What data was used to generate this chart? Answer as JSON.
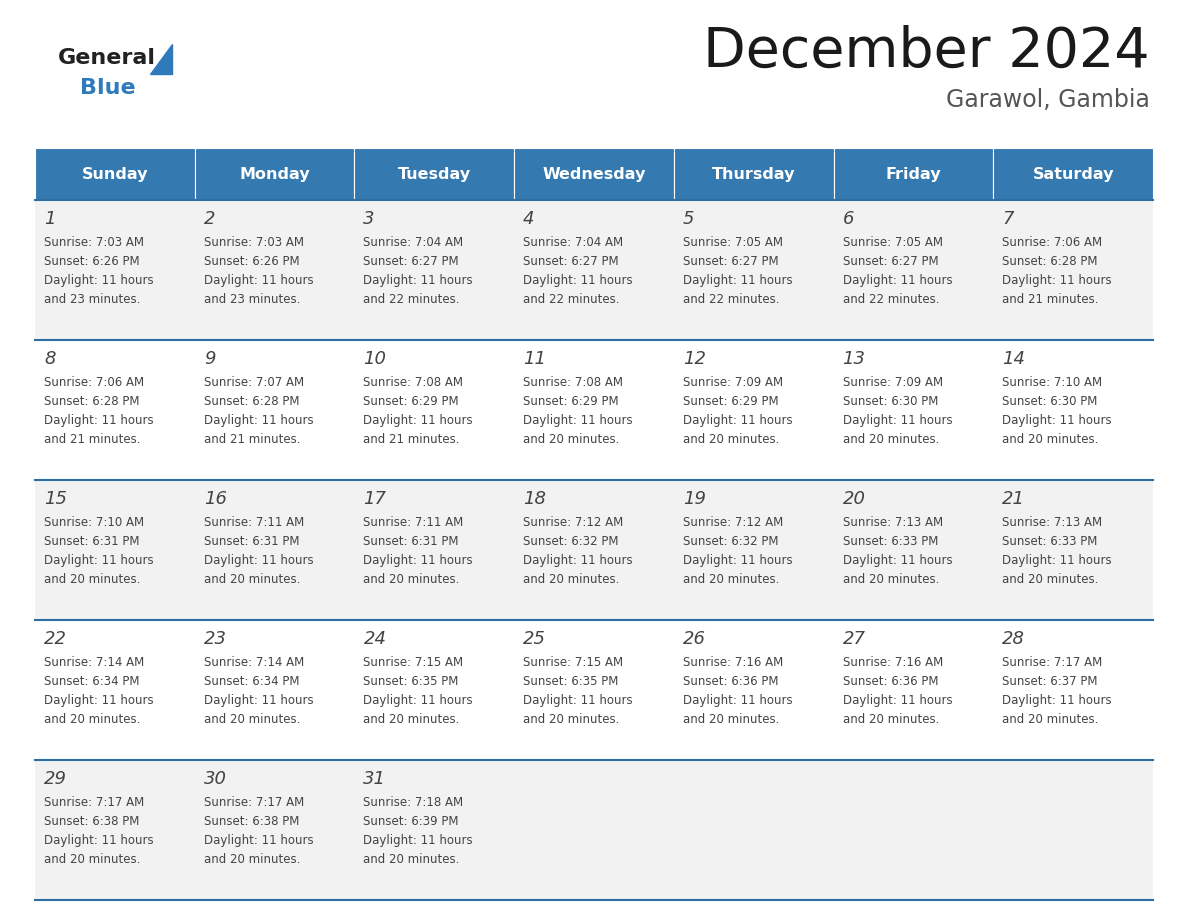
{
  "title": "December 2024",
  "subtitle": "Garawol, Gambia",
  "header_color": "#3579b1",
  "header_text_color": "#ffffff",
  "days_of_week": [
    "Sunday",
    "Monday",
    "Tuesday",
    "Wednesday",
    "Thursday",
    "Friday",
    "Saturday"
  ],
  "background_color": "#ffffff",
  "cell_bg_even": "#f2f2f2",
  "cell_bg_odd": "#ffffff",
  "border_color": "#2e6da4",
  "text_color": "#444444",
  "logo_general_color": "#222222",
  "logo_blue_color": "#2e7aba",
  "logo_triangle_color": "#2e7aba",
  "calendar_data": [
    [
      {
        "day": 1,
        "sunrise": "7:03 AM",
        "sunset": "6:26 PM",
        "daylight_hours": 11,
        "daylight_minutes": 23
      },
      {
        "day": 2,
        "sunrise": "7:03 AM",
        "sunset": "6:26 PM",
        "daylight_hours": 11,
        "daylight_minutes": 23
      },
      {
        "day": 3,
        "sunrise": "7:04 AM",
        "sunset": "6:27 PM",
        "daylight_hours": 11,
        "daylight_minutes": 22
      },
      {
        "day": 4,
        "sunrise": "7:04 AM",
        "sunset": "6:27 PM",
        "daylight_hours": 11,
        "daylight_minutes": 22
      },
      {
        "day": 5,
        "sunrise": "7:05 AM",
        "sunset": "6:27 PM",
        "daylight_hours": 11,
        "daylight_minutes": 22
      },
      {
        "day": 6,
        "sunrise": "7:05 AM",
        "sunset": "6:27 PM",
        "daylight_hours": 11,
        "daylight_minutes": 22
      },
      {
        "day": 7,
        "sunrise": "7:06 AM",
        "sunset": "6:28 PM",
        "daylight_hours": 11,
        "daylight_minutes": 21
      }
    ],
    [
      {
        "day": 8,
        "sunrise": "7:06 AM",
        "sunset": "6:28 PM",
        "daylight_hours": 11,
        "daylight_minutes": 21
      },
      {
        "day": 9,
        "sunrise": "7:07 AM",
        "sunset": "6:28 PM",
        "daylight_hours": 11,
        "daylight_minutes": 21
      },
      {
        "day": 10,
        "sunrise": "7:08 AM",
        "sunset": "6:29 PM",
        "daylight_hours": 11,
        "daylight_minutes": 21
      },
      {
        "day": 11,
        "sunrise": "7:08 AM",
        "sunset": "6:29 PM",
        "daylight_hours": 11,
        "daylight_minutes": 20
      },
      {
        "day": 12,
        "sunrise": "7:09 AM",
        "sunset": "6:29 PM",
        "daylight_hours": 11,
        "daylight_minutes": 20
      },
      {
        "day": 13,
        "sunrise": "7:09 AM",
        "sunset": "6:30 PM",
        "daylight_hours": 11,
        "daylight_minutes": 20
      },
      {
        "day": 14,
        "sunrise": "7:10 AM",
        "sunset": "6:30 PM",
        "daylight_hours": 11,
        "daylight_minutes": 20
      }
    ],
    [
      {
        "day": 15,
        "sunrise": "7:10 AM",
        "sunset": "6:31 PM",
        "daylight_hours": 11,
        "daylight_minutes": 20
      },
      {
        "day": 16,
        "sunrise": "7:11 AM",
        "sunset": "6:31 PM",
        "daylight_hours": 11,
        "daylight_minutes": 20
      },
      {
        "day": 17,
        "sunrise": "7:11 AM",
        "sunset": "6:31 PM",
        "daylight_hours": 11,
        "daylight_minutes": 20
      },
      {
        "day": 18,
        "sunrise": "7:12 AM",
        "sunset": "6:32 PM",
        "daylight_hours": 11,
        "daylight_minutes": 20
      },
      {
        "day": 19,
        "sunrise": "7:12 AM",
        "sunset": "6:32 PM",
        "daylight_hours": 11,
        "daylight_minutes": 20
      },
      {
        "day": 20,
        "sunrise": "7:13 AM",
        "sunset": "6:33 PM",
        "daylight_hours": 11,
        "daylight_minutes": 20
      },
      {
        "day": 21,
        "sunrise": "7:13 AM",
        "sunset": "6:33 PM",
        "daylight_hours": 11,
        "daylight_minutes": 20
      }
    ],
    [
      {
        "day": 22,
        "sunrise": "7:14 AM",
        "sunset": "6:34 PM",
        "daylight_hours": 11,
        "daylight_minutes": 20
      },
      {
        "day": 23,
        "sunrise": "7:14 AM",
        "sunset": "6:34 PM",
        "daylight_hours": 11,
        "daylight_minutes": 20
      },
      {
        "day": 24,
        "sunrise": "7:15 AM",
        "sunset": "6:35 PM",
        "daylight_hours": 11,
        "daylight_minutes": 20
      },
      {
        "day": 25,
        "sunrise": "7:15 AM",
        "sunset": "6:35 PM",
        "daylight_hours": 11,
        "daylight_minutes": 20
      },
      {
        "day": 26,
        "sunrise": "7:16 AM",
        "sunset": "6:36 PM",
        "daylight_hours": 11,
        "daylight_minutes": 20
      },
      {
        "day": 27,
        "sunrise": "7:16 AM",
        "sunset": "6:36 PM",
        "daylight_hours": 11,
        "daylight_minutes": 20
      },
      {
        "day": 28,
        "sunrise": "7:17 AM",
        "sunset": "6:37 PM",
        "daylight_hours": 11,
        "daylight_minutes": 20
      }
    ],
    [
      {
        "day": 29,
        "sunrise": "7:17 AM",
        "sunset": "6:38 PM",
        "daylight_hours": 11,
        "daylight_minutes": 20
      },
      {
        "day": 30,
        "sunrise": "7:17 AM",
        "sunset": "6:38 PM",
        "daylight_hours": 11,
        "daylight_minutes": 20
      },
      {
        "day": 31,
        "sunrise": "7:18 AM",
        "sunset": "6:39 PM",
        "daylight_hours": 11,
        "daylight_minutes": 20
      },
      null,
      null,
      null,
      null
    ]
  ]
}
